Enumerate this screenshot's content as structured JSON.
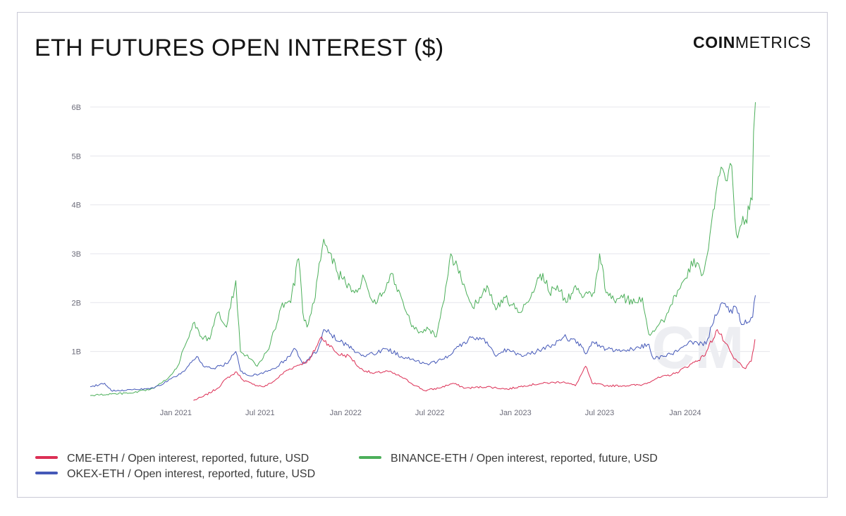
{
  "header": {
    "title": "ETH FUTURES OPEN INTEREST ($)",
    "brand_bold": "COIN",
    "brand_light": "METRICS"
  },
  "watermark": "CM",
  "legend": [
    {
      "label": "CME-ETH / Open interest, reported, future, USD",
      "color": "#dc2f55"
    },
    {
      "label": "BINANCE-ETH / Open interest, reported, future, USD",
      "color": "#4caf5a"
    },
    {
      "label": "OKEX-ETH / Open interest, reported, future, USD",
      "color": "#4458b8"
    }
  ],
  "chart_data": {
    "type": "line",
    "title": "ETH FUTURES OPEN INTEREST ($)",
    "xlabel": "",
    "ylabel": "",
    "x_ticks": [
      "Jan 2021",
      "Jul 2021",
      "Jan 2022",
      "Jul 2022",
      "Jan 2023",
      "Jul 2023",
      "Jan 2024"
    ],
    "y_ticks": [
      "1B",
      "2B",
      "3B",
      "4B",
      "5B",
      "6B"
    ],
    "xlim": [
      "2020-07-01",
      "2024-07-01"
    ],
    "ylim": [
      0,
      6.1
    ],
    "y_unit": "billion USD",
    "grid": "horizontal",
    "legend_position": "bottom",
    "series": [
      {
        "name": "CME-ETH / Open interest, reported, future, USD",
        "color": "#dc2f55",
        "points": [
          [
            "2021-02-08",
            0.0
          ],
          [
            "2021-03-01",
            0.08
          ],
          [
            "2021-04-01",
            0.25
          ],
          [
            "2021-04-20",
            0.45
          ],
          [
            "2021-05-12",
            0.58
          ],
          [
            "2021-05-25",
            0.42
          ],
          [
            "2021-06-15",
            0.33
          ],
          [
            "2021-07-10",
            0.28
          ],
          [
            "2021-08-01",
            0.4
          ],
          [
            "2021-08-25",
            0.6
          ],
          [
            "2021-09-20",
            0.72
          ],
          [
            "2021-10-15",
            0.82
          ],
          [
            "2021-11-10",
            1.3
          ],
          [
            "2021-11-25",
            1.15
          ],
          [
            "2021-12-15",
            0.95
          ],
          [
            "2022-01-10",
            0.9
          ],
          [
            "2022-02-01",
            0.65
          ],
          [
            "2022-03-01",
            0.55
          ],
          [
            "2022-04-01",
            0.6
          ],
          [
            "2022-05-01",
            0.48
          ],
          [
            "2022-06-01",
            0.3
          ],
          [
            "2022-06-20",
            0.2
          ],
          [
            "2022-07-20",
            0.25
          ],
          [
            "2022-08-20",
            0.35
          ],
          [
            "2022-09-15",
            0.25
          ],
          [
            "2022-11-01",
            0.28
          ],
          [
            "2022-12-15",
            0.23
          ],
          [
            "2023-01-20",
            0.3
          ],
          [
            "2023-03-01",
            0.35
          ],
          [
            "2023-04-15",
            0.38
          ],
          [
            "2023-05-10",
            0.3
          ],
          [
            "2023-06-01",
            0.7
          ],
          [
            "2023-06-15",
            0.35
          ],
          [
            "2023-07-15",
            0.3
          ],
          [
            "2023-08-20",
            0.3
          ],
          [
            "2023-10-01",
            0.32
          ],
          [
            "2023-11-01",
            0.45
          ],
          [
            "2023-12-10",
            0.55
          ],
          [
            "2024-01-15",
            0.75
          ],
          [
            "2024-02-10",
            0.9
          ],
          [
            "2024-03-10",
            1.45
          ],
          [
            "2024-03-25",
            1.2
          ],
          [
            "2024-04-15",
            0.85
          ],
          [
            "2024-05-10",
            0.65
          ],
          [
            "2024-05-22",
            0.8
          ],
          [
            "2024-05-30",
            1.25
          ]
        ]
      },
      {
        "name": "BINANCE-ETH / Open interest, reported, future, USD",
        "color": "#4caf5a",
        "points": [
          [
            "2020-07-01",
            0.1
          ],
          [
            "2020-08-15",
            0.13
          ],
          [
            "2020-10-01",
            0.15
          ],
          [
            "2020-11-15",
            0.25
          ],
          [
            "2020-12-15",
            0.45
          ],
          [
            "2021-01-05",
            0.7
          ],
          [
            "2021-01-20",
            1.1
          ],
          [
            "2021-02-10",
            1.6
          ],
          [
            "2021-02-25",
            1.3
          ],
          [
            "2021-03-15",
            1.25
          ],
          [
            "2021-04-01",
            1.8
          ],
          [
            "2021-04-20",
            1.5
          ],
          [
            "2021-05-10",
            2.45
          ],
          [
            "2021-05-20",
            1.0
          ],
          [
            "2021-06-10",
            0.85
          ],
          [
            "2021-06-25",
            0.7
          ],
          [
            "2021-07-20",
            1.05
          ],
          [
            "2021-08-15",
            1.9
          ],
          [
            "2021-09-05",
            2.0
          ],
          [
            "2021-09-22",
            2.9
          ],
          [
            "2021-10-01",
            1.8
          ],
          [
            "2021-10-10",
            1.5
          ],
          [
            "2021-10-25",
            2.0
          ],
          [
            "2021-11-05",
            2.8
          ],
          [
            "2021-11-15",
            3.3
          ],
          [
            "2021-12-01",
            3.0
          ],
          [
            "2021-12-15",
            2.6
          ],
          [
            "2022-01-01",
            2.4
          ],
          [
            "2022-01-20",
            2.2
          ],
          [
            "2022-02-10",
            2.5
          ],
          [
            "2022-03-01",
            2.0
          ],
          [
            "2022-03-25",
            2.2
          ],
          [
            "2022-04-10",
            2.6
          ],
          [
            "2022-05-01",
            2.1
          ],
          [
            "2022-05-20",
            1.6
          ],
          [
            "2022-06-10",
            1.4
          ],
          [
            "2022-06-25",
            1.5
          ],
          [
            "2022-07-15",
            1.3
          ],
          [
            "2022-08-01",
            2.05
          ],
          [
            "2022-08-15",
            3.0
          ],
          [
            "2022-09-01",
            2.6
          ],
          [
            "2022-09-15",
            2.3
          ],
          [
            "2022-10-01",
            1.9
          ],
          [
            "2022-11-01",
            2.35
          ],
          [
            "2022-11-20",
            1.85
          ],
          [
            "2022-12-10",
            2.1
          ],
          [
            "2023-01-10",
            1.8
          ],
          [
            "2023-01-25",
            2.0
          ],
          [
            "2023-02-15",
            2.4
          ],
          [
            "2023-03-01",
            2.6
          ],
          [
            "2023-03-15",
            2.2
          ],
          [
            "2023-04-01",
            2.35
          ],
          [
            "2023-04-20",
            2.0
          ],
          [
            "2023-05-10",
            2.35
          ],
          [
            "2023-05-25",
            2.1
          ],
          [
            "2023-06-20",
            2.2
          ],
          [
            "2023-07-01",
            3.0
          ],
          [
            "2023-07-15",
            2.2
          ],
          [
            "2023-08-01",
            2.05
          ],
          [
            "2023-08-20",
            2.1
          ],
          [
            "2023-09-15",
            2.0
          ],
          [
            "2023-10-01",
            2.1
          ],
          [
            "2023-10-15",
            1.35
          ],
          [
            "2023-11-01",
            1.5
          ],
          [
            "2023-11-20",
            1.7
          ],
          [
            "2023-12-10",
            2.15
          ],
          [
            "2024-01-05",
            2.5
          ],
          [
            "2024-01-20",
            2.9
          ],
          [
            "2024-02-05",
            2.55
          ],
          [
            "2024-02-20",
            3.1
          ],
          [
            "2024-03-01",
            3.9
          ],
          [
            "2024-03-15",
            4.6
          ],
          [
            "2024-03-28",
            4.5
          ],
          [
            "2024-04-10",
            4.8
          ],
          [
            "2024-04-20",
            3.4
          ],
          [
            "2024-05-01",
            3.6
          ],
          [
            "2024-05-10",
            3.7
          ],
          [
            "2024-05-18",
            3.9
          ],
          [
            "2024-05-24",
            4.1
          ],
          [
            "2024-05-27",
            5.5
          ],
          [
            "2024-05-31",
            6.1
          ]
        ]
      },
      {
        "name": "OKEX-ETH / Open interest, reported, future, USD",
        "color": "#4458b8",
        "points": [
          [
            "2020-07-01",
            0.28
          ],
          [
            "2020-08-01",
            0.35
          ],
          [
            "2020-08-15",
            0.2
          ],
          [
            "2020-10-01",
            0.22
          ],
          [
            "2020-11-15",
            0.25
          ],
          [
            "2020-12-15",
            0.4
          ],
          [
            "2021-01-20",
            0.6
          ],
          [
            "2021-02-15",
            0.9
          ],
          [
            "2021-03-01",
            0.7
          ],
          [
            "2021-03-20",
            0.65
          ],
          [
            "2021-04-20",
            0.75
          ],
          [
            "2021-05-10",
            1.0
          ],
          [
            "2021-05-20",
            0.6
          ],
          [
            "2021-06-10",
            0.5
          ],
          [
            "2021-07-01",
            0.55
          ],
          [
            "2021-08-01",
            0.65
          ],
          [
            "2021-09-01",
            0.9
          ],
          [
            "2021-09-15",
            1.05
          ],
          [
            "2021-10-01",
            0.75
          ],
          [
            "2021-11-01",
            1.0
          ],
          [
            "2021-11-15",
            1.45
          ],
          [
            "2021-12-01",
            1.35
          ],
          [
            "2021-12-20",
            1.2
          ],
          [
            "2022-01-15",
            1.05
          ],
          [
            "2022-02-10",
            0.9
          ],
          [
            "2022-03-01",
            0.95
          ],
          [
            "2022-04-01",
            1.05
          ],
          [
            "2022-05-01",
            0.9
          ],
          [
            "2022-06-01",
            0.8
          ],
          [
            "2022-07-01",
            0.75
          ],
          [
            "2022-08-01",
            0.85
          ],
          [
            "2022-09-01",
            1.1
          ],
          [
            "2022-10-01",
            1.3
          ],
          [
            "2022-11-01",
            1.2
          ],
          [
            "2022-11-20",
            0.9
          ],
          [
            "2022-12-15",
            1.05
          ],
          [
            "2023-01-15",
            0.9
          ],
          [
            "2023-02-15",
            1.0
          ],
          [
            "2023-03-15",
            1.1
          ],
          [
            "2023-04-15",
            1.3
          ],
          [
            "2023-05-15",
            1.2
          ],
          [
            "2023-06-01",
            0.95
          ],
          [
            "2023-06-15",
            1.2
          ],
          [
            "2023-07-15",
            1.05
          ],
          [
            "2023-08-15",
            1.0
          ],
          [
            "2023-09-15",
            1.05
          ],
          [
            "2023-10-15",
            1.15
          ],
          [
            "2023-10-25",
            0.85
          ],
          [
            "2023-11-15",
            0.9
          ],
          [
            "2023-12-15",
            1.0
          ],
          [
            "2024-01-15",
            1.2
          ],
          [
            "2024-02-15",
            1.15
          ],
          [
            "2024-03-05",
            1.75
          ],
          [
            "2024-03-20",
            2.0
          ],
          [
            "2024-04-05",
            1.8
          ],
          [
            "2024-04-20",
            1.9
          ],
          [
            "2024-05-01",
            1.55
          ],
          [
            "2024-05-15",
            1.6
          ],
          [
            "2024-05-25",
            1.7
          ],
          [
            "2024-05-31",
            2.15
          ]
        ]
      }
    ]
  }
}
